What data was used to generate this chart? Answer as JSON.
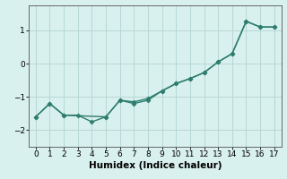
{
  "line1_x": [
    0,
    1,
    2,
    5,
    6,
    7,
    8,
    9,
    10,
    11,
    12,
    13,
    14,
    15,
    16,
    17
  ],
  "line1_y": [
    -1.6,
    -1.2,
    -1.55,
    -1.6,
    -1.1,
    -1.15,
    -1.05,
    -0.82,
    -0.6,
    -0.45,
    -0.27,
    0.05,
    0.3,
    1.27,
    1.1,
    1.1
  ],
  "line2_x": [
    0,
    1,
    2,
    3,
    4,
    5,
    6,
    7,
    8,
    9,
    10,
    11,
    12,
    13,
    14,
    15,
    16,
    17
  ],
  "line2_y": [
    -1.6,
    -1.2,
    -1.55,
    -1.55,
    -1.75,
    -1.6,
    -1.1,
    -1.2,
    -1.1,
    -0.82,
    -0.6,
    -0.45,
    -0.27,
    0.05,
    0.3,
    1.27,
    1.1,
    1.1
  ],
  "line_color": "#2e7d6e",
  "bg_color": "#d8f0ee",
  "grid_color": "#b8d8d4",
  "xlabel": "Humidex (Indice chaleur)",
  "xlim": [
    -0.5,
    17.5
  ],
  "ylim": [
    -2.5,
    1.75
  ],
  "yticks": [
    -2,
    -1,
    0,
    1
  ],
  "xticks": [
    0,
    1,
    2,
    3,
    4,
    5,
    6,
    7,
    8,
    9,
    10,
    11,
    12,
    13,
    14,
    15,
    16,
    17
  ],
  "xlabel_fontsize": 7.5,
  "tick_fontsize": 6.5,
  "line_width": 1.0,
  "marker": "D",
  "marker_size": 2.5
}
